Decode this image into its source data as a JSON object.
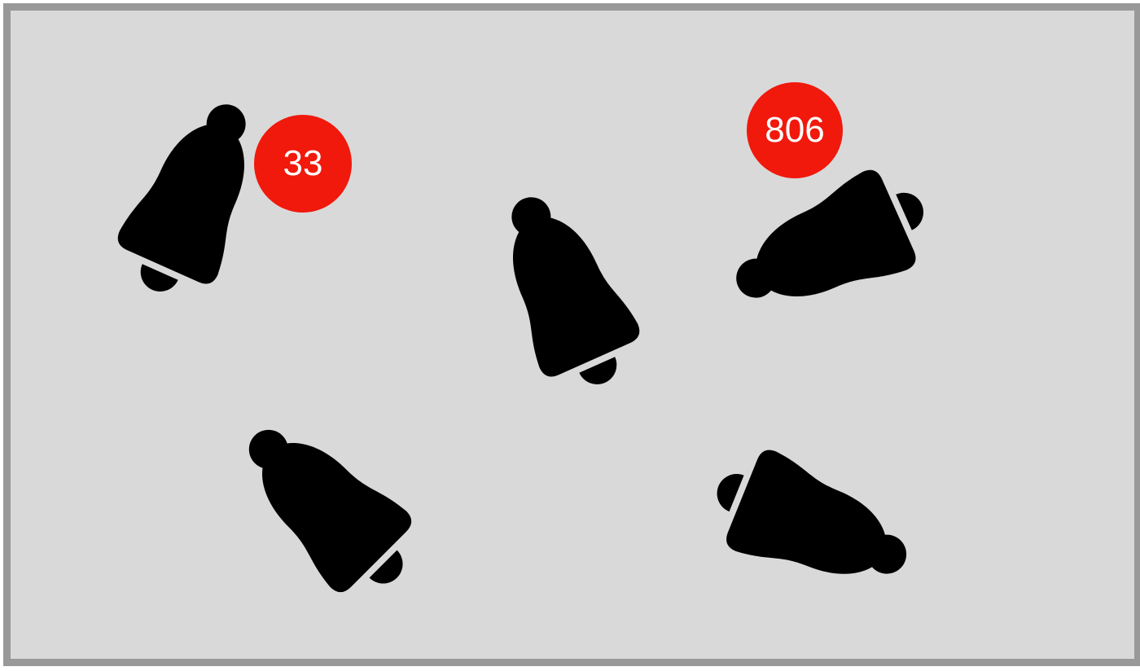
{
  "colors": {
    "background": "#d9d9d9",
    "frame": "#999999",
    "bell": "#000000",
    "badge": "#f0190c",
    "badge_text": "#ffffff"
  },
  "bells": [
    {
      "icon": "bell-icon",
      "badge": "33"
    },
    {
      "icon": "bell-icon",
      "badge": ""
    },
    {
      "icon": "bell-icon",
      "badge": "806"
    },
    {
      "icon": "bell-icon",
      "badge": ""
    },
    {
      "icon": "bell-icon",
      "badge": ""
    }
  ]
}
